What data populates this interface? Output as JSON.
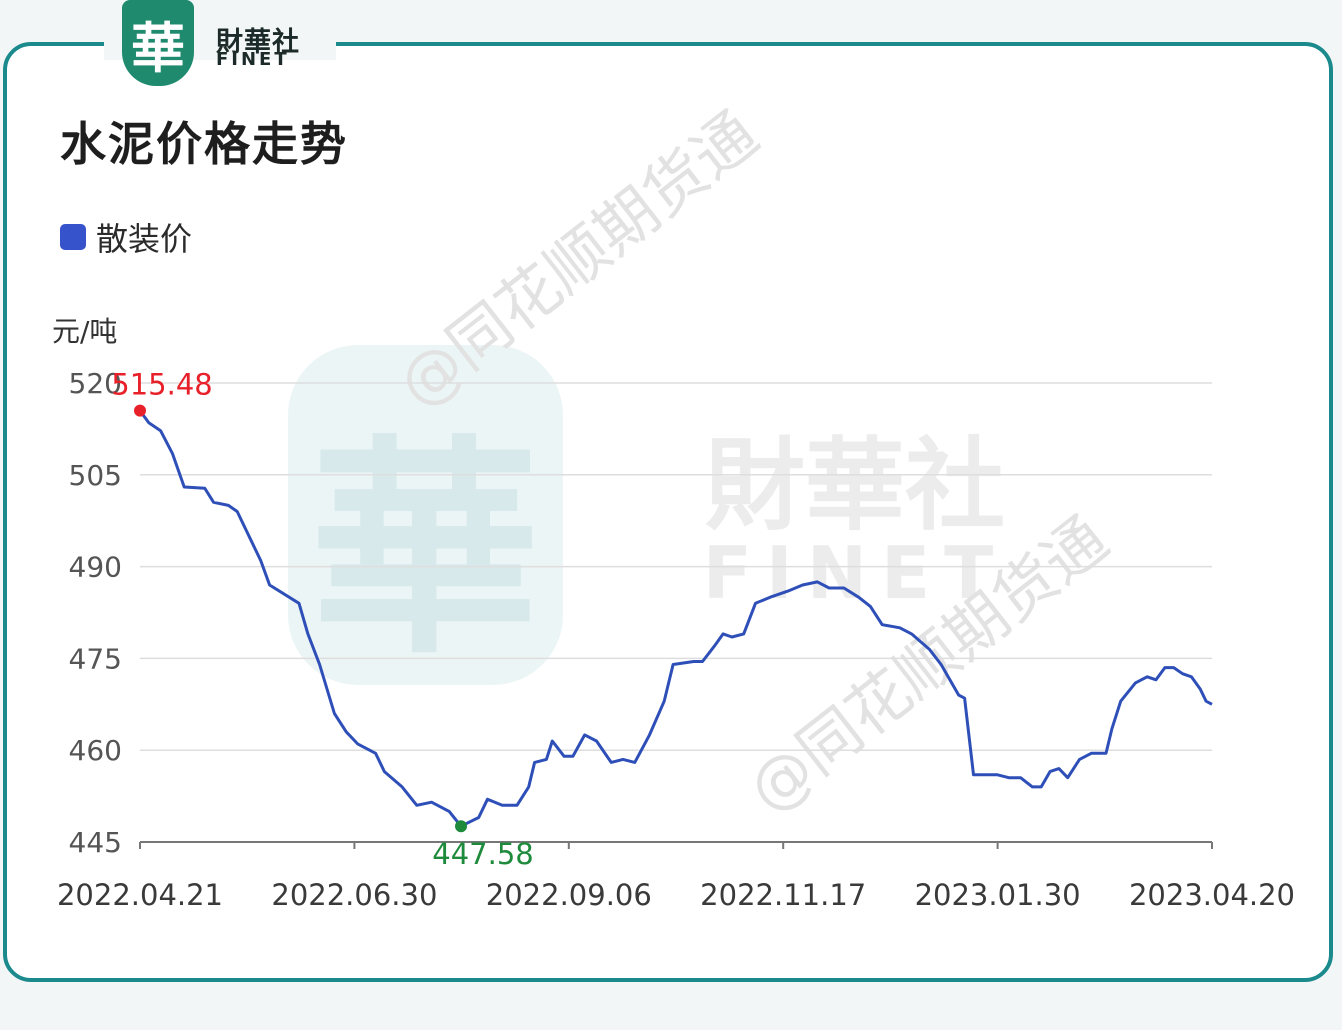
{
  "brand": {
    "logo_char": "華",
    "name_cn": "財華社",
    "name_en": "FINET",
    "watermark_text": "@同花顺期货通"
  },
  "title": "水泥价格走势",
  "legend": {
    "label": "散装价"
  },
  "colors": {
    "frame": "#1a8a8c",
    "line": "#2e4fb8",
    "max": "#e8202a",
    "min": "#1e8a3c",
    "grid": "#dedede",
    "axis": "#777777",
    "tick": "#555555",
    "swatch": "#3653cc"
  },
  "chart_data": {
    "type": "line",
    "ylabel": "元/吨",
    "ylim": [
      445,
      520
    ],
    "yticks": [
      520,
      505,
      490,
      475,
      460,
      445
    ],
    "xlim": [
      "2022-04-21",
      "2023-04-20"
    ],
    "xtick_labels": [
      "2022.04.21",
      "2022.06.30",
      "2022.09.06",
      "2022.11.17",
      "2023.01.30",
      "2023.04.20"
    ],
    "series": [
      {
        "name": "散装价",
        "points": [
          [
            "2022-04-21",
            515.48
          ],
          [
            "2022-04-24",
            513.5
          ],
          [
            "2022-04-28",
            512.2
          ],
          [
            "2022-05-02",
            508.5
          ],
          [
            "2022-05-06",
            503.0
          ],
          [
            "2022-05-13",
            502.8
          ],
          [
            "2022-05-16",
            500.5
          ],
          [
            "2022-05-21",
            500.0
          ],
          [
            "2022-05-24",
            499.0
          ],
          [
            "2022-05-27",
            496.0
          ],
          [
            "2022-06-01",
            491.0
          ],
          [
            "2022-06-04",
            487.0
          ],
          [
            "2022-06-14",
            484.0
          ],
          [
            "2022-06-17",
            479.0
          ],
          [
            "2022-06-21",
            474.0
          ],
          [
            "2022-06-26",
            466.0
          ],
          [
            "2022-06-30",
            463.0
          ],
          [
            "2022-07-04",
            461.0
          ],
          [
            "2022-07-10",
            459.5
          ],
          [
            "2022-07-13",
            456.5
          ],
          [
            "2022-07-19",
            454.0
          ],
          [
            "2022-07-24",
            451.0
          ],
          [
            "2022-07-29",
            451.5
          ],
          [
            "2022-08-04",
            450.0
          ],
          [
            "2022-08-08",
            447.58
          ],
          [
            "2022-08-14",
            449.0
          ],
          [
            "2022-08-17",
            452.0
          ],
          [
            "2022-08-22",
            451.0
          ],
          [
            "2022-08-27",
            451.0
          ],
          [
            "2022-08-31",
            454.0
          ],
          [
            "2022-09-02",
            458.0
          ],
          [
            "2022-09-06",
            458.5
          ],
          [
            "2022-09-08",
            461.5
          ],
          [
            "2022-09-12",
            459.0
          ],
          [
            "2022-09-15",
            459.0
          ],
          [
            "2022-09-19",
            462.5
          ],
          [
            "2022-09-23",
            461.5
          ],
          [
            "2022-09-28",
            458.0
          ],
          [
            "2022-10-02",
            458.5
          ],
          [
            "2022-10-06",
            458.0
          ],
          [
            "2022-10-11",
            462.5
          ],
          [
            "2022-10-16",
            468.0
          ],
          [
            "2022-10-19",
            474.0
          ],
          [
            "2022-10-26",
            474.5
          ],
          [
            "2022-10-29",
            474.5
          ],
          [
            "2022-11-02",
            477.0
          ],
          [
            "2022-11-05",
            479.0
          ],
          [
            "2022-11-08",
            478.5
          ],
          [
            "2022-11-12",
            479.0
          ],
          [
            "2022-11-16",
            484.0
          ],
          [
            "2022-11-21",
            485.0
          ],
          [
            "2022-11-27",
            486.0
          ],
          [
            "2022-12-02",
            487.0
          ],
          [
            "2022-12-07",
            487.5
          ],
          [
            "2022-12-11",
            486.5
          ],
          [
            "2022-12-16",
            486.5
          ],
          [
            "2022-12-21",
            485.0
          ],
          [
            "2022-12-25",
            483.5
          ],
          [
            "2022-12-29",
            480.5
          ],
          [
            "2023-01-04",
            480.0
          ],
          [
            "2023-01-08",
            479.0
          ],
          [
            "2023-01-14",
            476.5
          ],
          [
            "2023-01-18",
            474.0
          ],
          [
            "2023-01-24",
            469.0
          ],
          [
            "2023-01-26",
            468.5
          ],
          [
            "2023-01-29",
            456.0
          ],
          [
            "2023-02-06",
            456.0
          ],
          [
            "2023-02-10",
            455.5
          ],
          [
            "2023-02-14",
            455.5
          ],
          [
            "2023-02-18",
            454.0
          ],
          [
            "2023-02-21",
            454.0
          ],
          [
            "2023-02-24",
            456.5
          ],
          [
            "2023-02-27",
            457.0
          ],
          [
            "2023-03-02",
            455.5
          ],
          [
            "2023-03-06",
            458.5
          ],
          [
            "2023-03-10",
            459.5
          ],
          [
            "2023-03-15",
            459.5
          ],
          [
            "2023-03-17",
            463.5
          ],
          [
            "2023-03-20",
            468.0
          ],
          [
            "2023-03-25",
            471.0
          ],
          [
            "2023-03-29",
            472.0
          ],
          [
            "2023-04-01",
            471.5
          ],
          [
            "2023-04-04",
            473.5
          ],
          [
            "2023-04-07",
            473.5
          ],
          [
            "2023-04-10",
            472.5
          ],
          [
            "2023-04-13",
            472.0
          ],
          [
            "2023-04-16",
            470.0
          ],
          [
            "2023-04-18",
            468.0
          ],
          [
            "2023-04-20",
            467.5
          ]
        ]
      }
    ],
    "annotations": [
      {
        "label": "515.48",
        "kind": "max",
        "x": "2022-04-21",
        "y": 515.48
      },
      {
        "label": "447.58",
        "kind": "min",
        "x": "2022-08-08",
        "y": 447.58
      }
    ],
    "grid": true
  }
}
